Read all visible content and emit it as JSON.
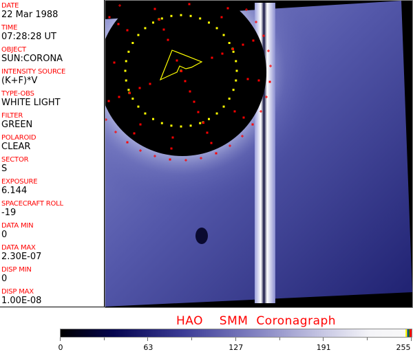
{
  "metadata_panel": {
    "fields": [
      {
        "label": "DATE",
        "value": "22 Mar 1988"
      },
      {
        "label": "TIME",
        "value": "07:28:28 UT"
      },
      {
        "label": "OBJECT",
        "value": "SUN:CORONA"
      },
      {
        "label": "INTENSITY SOURCE",
        "value": "(K+F)*V"
      },
      {
        "label": "TYPE-OBS",
        "value": "WHITE LIGHT"
      },
      {
        "label": "FILTER",
        "value": "GREEN"
      },
      {
        "label": "POLAROID",
        "value": "CLEAR"
      },
      {
        "label": "SECTOR",
        "value": "S"
      },
      {
        "label": "EXPOSURE",
        "value": "6.144"
      },
      {
        "label": "SPACECRAFT ROLL",
        "value": "-19"
      },
      {
        "label": "DATA MIN",
        "value": "0"
      },
      {
        "label": "DATA MAX",
        "value": "2.30E-07"
      },
      {
        "label": "DISP MIN",
        "value": "0"
      },
      {
        "label": "DISP MAX",
        "value": "1.00E-08"
      }
    ]
  },
  "image": {
    "overlay_ring_color": "#ffff00",
    "marker_color": "#ff0000",
    "sky_color": "#4a4fa6"
  },
  "footer": {
    "title": "HAO  SMM Coronagraph"
  },
  "colorbar": {
    "ticks": [
      "0",
      "63",
      "127",
      "191",
      "255"
    ],
    "min": 0,
    "max": 255
  }
}
